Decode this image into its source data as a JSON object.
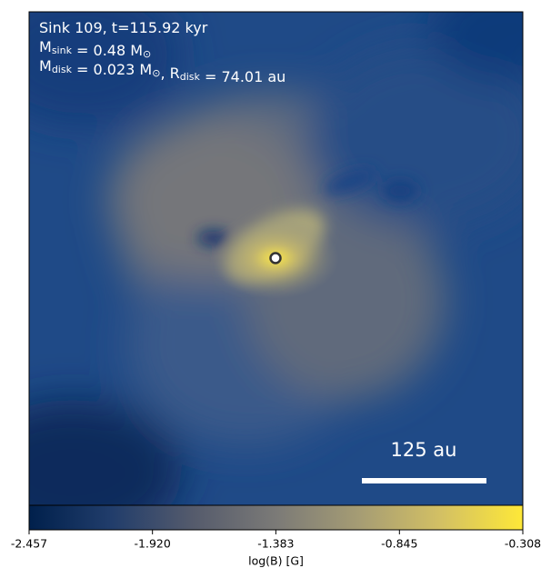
{
  "chart_data": {
    "type": "heatmap",
    "annotations": [
      [
        "Sink 109, t=115.92 kyr"
      ],
      [
        "M",
        {
          "sub": "sink"
        },
        " = 0.48 M",
        {
          "sub": "⊙"
        }
      ],
      [
        "M",
        {
          "sub": "disk"
        },
        " = 0.023 M",
        {
          "sub": "⊙"
        },
        ", R",
        {
          "sub": "disk"
        },
        " = 74.01 au"
      ]
    ],
    "scale_bar": "125 au",
    "colormap": "cividis",
    "clim": [
      -2.457,
      -0.308
    ],
    "cticks": [
      -2.457,
      -1.92,
      -1.383,
      -0.845,
      -0.308
    ],
    "clabel": "log(B) [G]"
  }
}
